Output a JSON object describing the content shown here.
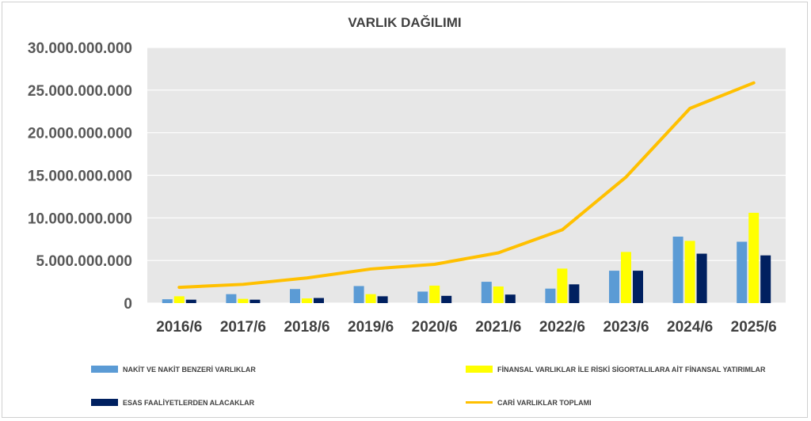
{
  "chart_data": {
    "type": "bar",
    "title": "VARLIK  DAĞILIMI",
    "categories": [
      "2016/6",
      "2017/6",
      "2018/6",
      "2019/6",
      "2020/6",
      "2021/6",
      "2022/6",
      "2023/6",
      "2024/6",
      "2025/6"
    ],
    "ylim": [
      0,
      30000000000
    ],
    "yticks": [
      {
        "value": 0,
        "label": "0"
      },
      {
        "value": 5000000000,
        "label": "5.000.000.000"
      },
      {
        "value": 10000000000,
        "label": "10.000.000.000"
      },
      {
        "value": 15000000000,
        "label": "15.000.000.000"
      },
      {
        "value": 20000000000,
        "label": "20.000.000.000"
      },
      {
        "value": 25000000000,
        "label": "25.000.000.000"
      },
      {
        "value": 30000000000,
        "label": "30.000.000.000"
      }
    ],
    "grid": true,
    "legend_position": "bottom",
    "series": [
      {
        "name": "NAKİT VE NAKİT BENZERİ VARLIKLAR",
        "type": "bar",
        "color": "#5B9BD5",
        "values": [
          450000000,
          1050000000,
          1650000000,
          2000000000,
          1350000000,
          2500000000,
          1700000000,
          3800000000,
          7800000000,
          7200000000
        ]
      },
      {
        "name": "FİNANSAL VARLIKLAR İLE RİSKİ SİGORTALILARA AİT FİNANSAL YATIRIMLAR",
        "type": "bar",
        "color": "#FFFF00",
        "values": [
          800000000,
          500000000,
          550000000,
          1050000000,
          2050000000,
          1950000000,
          4050000000,
          6000000000,
          7300000000,
          10600000000
        ]
      },
      {
        "name": "ESAS FAALİYETLERDEN ALACAKLAR",
        "type": "bar",
        "color": "#002060",
        "values": [
          400000000,
          400000000,
          600000000,
          800000000,
          850000000,
          1000000000,
          2200000000,
          3800000000,
          5800000000,
          5600000000
        ]
      },
      {
        "name": "CARİ VARLIKLAR TOPLAMI",
        "type": "line",
        "color": "#FFC000",
        "values": [
          1850000000,
          2200000000,
          2950000000,
          4000000000,
          4550000000,
          5900000000,
          8600000000,
          14800000000,
          22850000000,
          25850000000
        ]
      }
    ]
  }
}
